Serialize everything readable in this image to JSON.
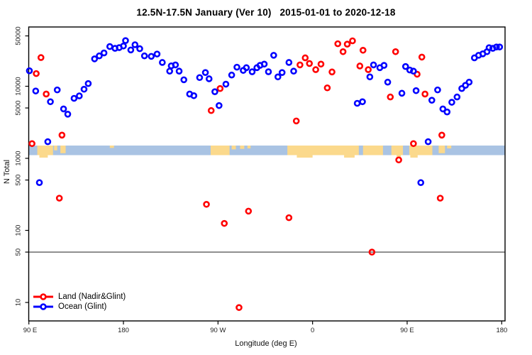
{
  "title": "12.5N-17.5N January (Ver 10)   2015-01-01 to 2020-12-18",
  "chart_data": {
    "type": "scatter",
    "title": "12.5N-17.5N January (Ver 10)   2015-01-01 to 2020-12-18",
    "xlabel": "Longitude (deg E)",
    "ylabel": "N Total",
    "x_scale": "linear_wrapped_longitude",
    "y_scale": "log10",
    "xlim": [
      89,
      543.5
    ],
    "ylim": [
      5,
      62000
    ],
    "grid": false,
    "x_ticks": [
      {
        "label": "90 E",
        "lon": 90
      },
      {
        "label": "180",
        "lon": 180
      },
      {
        "label": "90 W",
        "lon": 270
      },
      {
        "label": "0",
        "lon": 360
      },
      {
        "label": "90 E",
        "lon": 450
      },
      {
        "label": "180",
        "lon": 540
      }
    ],
    "y_ticks": [
      {
        "label": "50000",
        "value": 50000
      },
      {
        "label": "10000",
        "value": 10000
      },
      {
        "label": "5000",
        "value": 5000
      },
      {
        "label": "1000",
        "value": 1000
      },
      {
        "label": "500",
        "value": 500
      },
      {
        "label": "100",
        "value": 100
      },
      {
        "label": "50",
        "value": 50
      },
      {
        "label": "10",
        "value": 10
      }
    ],
    "ref_line": {
      "value": 50,
      "color": "#3a3a3a"
    },
    "map_strip": {
      "value_range": [
        1100,
        1500
      ],
      "ocean_color": "#a9c3e3",
      "land_color": "#fbd98c",
      "land_segments": [
        {
          "from": 98,
          "to": 113,
          "h": 1.0
        },
        {
          "from": 114,
          "to": 117,
          "h": 0.5
        },
        {
          "from": 120,
          "to": 125,
          "h": 0.8
        },
        {
          "from": 167,
          "to": 171,
          "h": 0.25
        },
        {
          "from": 263,
          "to": 281,
          "h": 1.0
        },
        {
          "from": 283,
          "to": 287,
          "h": 0.4
        },
        {
          "from": 291,
          "to": 295,
          "h": 0.35
        },
        {
          "from": 298,
          "to": 301,
          "h": 0.3
        },
        {
          "from": 336,
          "to": 404,
          "h": 1.0
        },
        {
          "from": 408,
          "to": 427,
          "h": 1.0
        },
        {
          "from": 435,
          "to": 446,
          "h": 1.0
        },
        {
          "from": 452,
          "to": 474,
          "h": 1.0
        },
        {
          "from": 480,
          "to": 486,
          "h": 0.8
        },
        {
          "from": 488,
          "to": 492,
          "h": 0.3
        }
      ],
      "coast_bumps_below": [
        {
          "from": 100,
          "to": 108
        },
        {
          "from": 345,
          "to": 360
        },
        {
          "from": 390,
          "to": 400
        },
        {
          "from": 440,
          "to": 444
        },
        {
          "from": 453,
          "to": 460
        }
      ]
    },
    "legend": {
      "position": "bottom-left",
      "items": [
        {
          "label": "Land (Nadir&Glint)",
          "color": "#ff0000"
        },
        {
          "label": "Ocean (Glint)",
          "color": "#0000ff"
        }
      ]
    },
    "series": [
      {
        "name": "Land (Nadir&Glint)",
        "color": "#ff0000",
        "points": [
          [
            101.5,
            25000
          ],
          [
            97,
            15000
          ],
          [
            106.5,
            7800
          ],
          [
            121.5,
            2100
          ],
          [
            93,
            1600
          ],
          [
            272,
            9300
          ],
          [
            263.5,
            4600
          ],
          [
            348,
            19800
          ],
          [
            353,
            24800
          ],
          [
            357,
            20700
          ],
          [
            363,
            17000
          ],
          [
            368,
            20300
          ],
          [
            378.5,
            15800
          ],
          [
            374,
            9500
          ],
          [
            384,
            38900
          ],
          [
            389,
            30200
          ],
          [
            393,
            38400
          ],
          [
            398,
            42700
          ],
          [
            408,
            31600
          ],
          [
            405,
            19100
          ],
          [
            413,
            17000
          ],
          [
            434,
            7100
          ],
          [
            344.5,
            3300
          ],
          [
            439,
            30200
          ],
          [
            464,
            25400
          ],
          [
            459.5,
            14700
          ],
          [
            467,
            7800
          ],
          [
            483,
            2100
          ],
          [
            456,
            1600
          ],
          [
            119,
            280
          ],
          [
            259,
            230
          ],
          [
            276,
            125
          ],
          [
            299,
            185
          ],
          [
            290,
            8.5
          ],
          [
            442,
            950
          ],
          [
            481.5,
            280
          ],
          [
            337.5,
            150
          ],
          [
            416.5,
            50
          ]
        ]
      },
      {
        "name": "Ocean (Glint)",
        "color": "#0000ff",
        "points": [
          [
            90.5,
            16400
          ],
          [
            96.5,
            8600
          ],
          [
            117,
            8900
          ],
          [
            110.5,
            6100
          ],
          [
            123,
            4850
          ],
          [
            127,
            4100
          ],
          [
            133,
            6800
          ],
          [
            138,
            7350
          ],
          [
            142.5,
            9100
          ],
          [
            146.5,
            10900
          ],
          [
            152.5,
            24000
          ],
          [
            157,
            26400
          ],
          [
            161.5,
            29000
          ],
          [
            167,
            35600
          ],
          [
            172,
            33600
          ],
          [
            176,
            34400
          ],
          [
            180,
            36200
          ],
          [
            182,
            43000
          ],
          [
            187,
            31900
          ],
          [
            191,
            37700
          ],
          [
            195.5,
            33200
          ],
          [
            200,
            26400
          ],
          [
            108,
            1700
          ],
          [
            206.5,
            26000
          ],
          [
            212,
            28000
          ],
          [
            217,
            21400
          ],
          [
            224,
            16200
          ],
          [
            225.5,
            19200
          ],
          [
            229.5,
            19800
          ],
          [
            233,
            16200
          ],
          [
            237.5,
            12300
          ],
          [
            243,
            7800
          ],
          [
            247,
            7400
          ],
          [
            252.5,
            13200
          ],
          [
            258,
            15500
          ],
          [
            261.5,
            12700
          ],
          [
            267,
            8400
          ],
          [
            271,
            5400
          ],
          [
            277.5,
            10700
          ],
          [
            283,
            14300
          ],
          [
            288,
            18400
          ],
          [
            294,
            16600
          ],
          [
            297,
            18100
          ],
          [
            302.5,
            15900
          ],
          [
            307,
            18100
          ],
          [
            310,
            19500
          ],
          [
            314,
            20300
          ],
          [
            318,
            15900
          ],
          [
            323,
            26900
          ],
          [
            327,
            13500
          ],
          [
            331,
            15500
          ],
          [
            337.5,
            21400
          ],
          [
            342,
            16200
          ],
          [
            414.5,
            13500
          ],
          [
            418,
            19800
          ],
          [
            424,
            18100
          ],
          [
            428,
            19500
          ],
          [
            431.5,
            11400
          ],
          [
            402.5,
            5800
          ],
          [
            407.5,
            6100
          ],
          [
            448.5,
            18800
          ],
          [
            452.5,
            16800
          ],
          [
            456,
            16200
          ],
          [
            445,
            8000
          ],
          [
            458.5,
            8700
          ],
          [
            479,
            8900
          ],
          [
            473.5,
            6400
          ],
          [
            484,
            4850
          ],
          [
            488,
            4400
          ],
          [
            492.5,
            6000
          ],
          [
            497.5,
            7100
          ],
          [
            502,
            9300
          ],
          [
            505.5,
            10300
          ],
          [
            509,
            11400
          ],
          [
            514,
            24800
          ],
          [
            518,
            26900
          ],
          [
            522,
            28200
          ],
          [
            526,
            30200
          ],
          [
            528,
            34300
          ],
          [
            531.5,
            33600
          ],
          [
            535,
            35100
          ],
          [
            538,
            35100
          ],
          [
            470,
            1700
          ],
          [
            100,
            460
          ],
          [
            463,
            460
          ]
        ]
      }
    ]
  }
}
